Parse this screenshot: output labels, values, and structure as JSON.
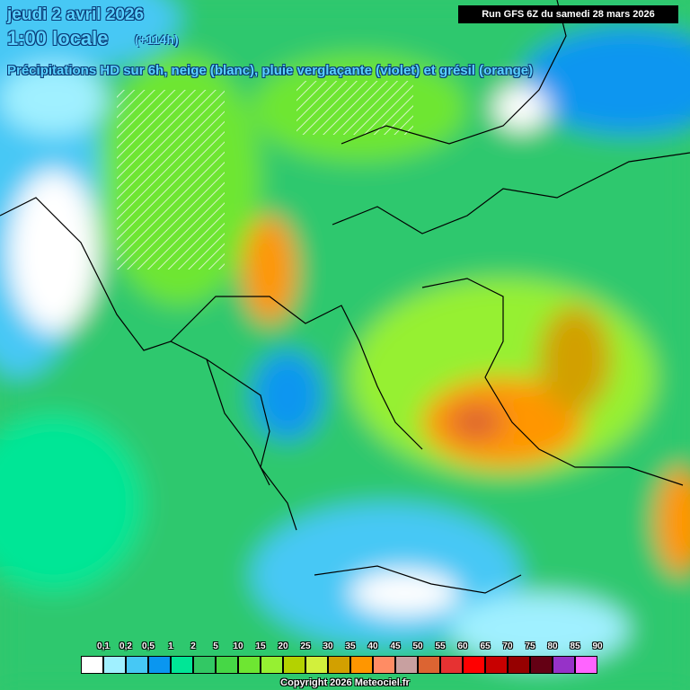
{
  "header": {
    "date": "jeudi 2 avril 2026",
    "time": "1:00 locale",
    "lead": "(+114h)",
    "run": "Run GFS 6Z du samedi 28 mars 2026",
    "subtitle": "Précipitations HD sur 6h, neige (blanc), pluie verglaçante (violet) et grésil (orange)"
  },
  "legend": {
    "labels": [
      "0,1",
      "0,2",
      "0,5",
      "1",
      "2",
      "5",
      "10",
      "15",
      "20",
      "25",
      "30",
      "35",
      "40",
      "45",
      "50",
      "55",
      "60",
      "65",
      "70",
      "75",
      "80",
      "85",
      "90"
    ],
    "colors": [
      "#ffffff",
      "#a0f0ff",
      "#46c8f5",
      "#0a96f0",
      "#00e696",
      "#32c864",
      "#46d746",
      "#6ee632",
      "#96f032",
      "#b4d200",
      "#d2f03c",
      "#d2a000",
      "#ff9600",
      "#ff8c64",
      "#c8a0a0",
      "#dc6432",
      "#e63232",
      "#ff0000",
      "#c80000",
      "#960000",
      "#640014",
      "#9632c8",
      "#ff64ff"
    ]
  },
  "footer": {
    "copyright": "Copyright 2026 Meteociel.fr"
  }
}
